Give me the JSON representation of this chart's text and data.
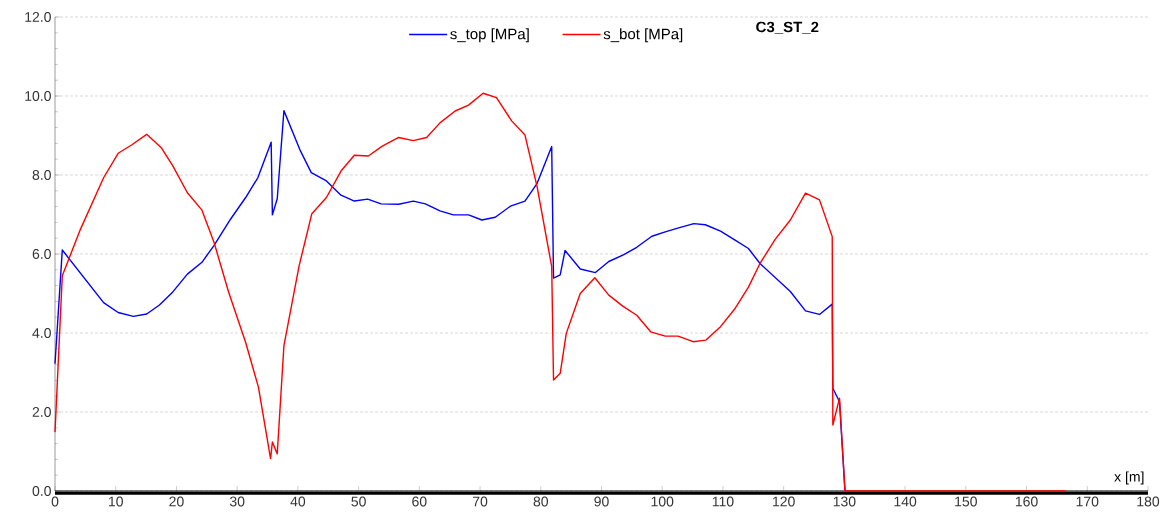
{
  "chart_data": {
    "type": "line",
    "title": "C3_ST_2",
    "xlabel": "x [m]",
    "series": [
      {
        "name": "s_top [MPa]",
        "color": "#0000ff",
        "x": [
          0,
          1.2,
          8.0,
          10.4,
          12.9,
          15.1,
          17.2,
          19.4,
          21.8,
          24.2,
          26.2,
          28.9,
          31.4,
          33.4,
          35.6,
          35.8,
          36.6,
          37.7,
          40.3,
          42.2,
          44.7,
          47.1,
          49.3,
          51.5,
          53.7,
          56.6,
          59.0,
          61.0,
          63.4,
          65.6,
          68.1,
          70.3,
          72.5,
          75.0,
          77.4,
          79.4,
          81.8,
          82.1,
          83.2,
          84.0,
          86.5,
          89.0,
          91.2,
          93.6,
          95.8,
          98.3,
          100.5,
          102.7,
          105.2,
          107.1,
          109.6,
          112.0,
          114.2,
          116.1,
          121.1,
          123.6,
          125.9,
          128.0,
          128.1,
          129.2,
          130.1
        ],
        "values": [
          3.22,
          6.1,
          4.77,
          4.52,
          4.42,
          4.48,
          4.71,
          5.04,
          5.49,
          5.79,
          6.22,
          6.88,
          7.43,
          7.93,
          8.83,
          6.99,
          7.4,
          9.63,
          8.65,
          8.06,
          7.85,
          7.49,
          7.34,
          7.39,
          7.27,
          7.26,
          7.34,
          7.27,
          7.09,
          6.99,
          6.99,
          6.86,
          6.93,
          7.21,
          7.34,
          7.79,
          8.72,
          5.39,
          5.47,
          6.09,
          5.62,
          5.53,
          5.81,
          5.98,
          6.17,
          6.45,
          6.56,
          6.66,
          6.77,
          6.74,
          6.58,
          6.35,
          6.14,
          5.76,
          5.05,
          4.56,
          4.47,
          4.73,
          2.6,
          2.26,
          0
        ]
      },
      {
        "name": "s_bot [MPa]",
        "color": "#ff0000",
        "x": [
          0,
          1.2,
          4.2,
          8.0,
          10.4,
          12.6,
          15.1,
          17.5,
          19.4,
          21.8,
          24.2,
          26.2,
          28.6,
          31.4,
          33.5,
          35.5,
          35.8,
          36.6,
          37.7,
          40.2,
          42.3,
          44.7,
          47.1,
          49.3,
          51.6,
          53.9,
          56.6,
          59.0,
          61.2,
          63.4,
          65.9,
          68.1,
          70.5,
          72.7,
          75.2,
          77.4,
          79.4,
          81.8,
          82.1,
          83.2,
          84.2,
          86.5,
          88.9,
          91.2,
          93.5,
          95.8,
          98.1,
          100.5,
          102.6,
          105.1,
          107.2,
          109.6,
          111.9,
          114.2,
          116.1,
          118.6,
          121.1,
          123.6,
          125.9,
          128.0,
          128.1,
          129.2,
          130.1,
          166.4
        ],
        "values": [
          1.49,
          5.45,
          6.63,
          7.93,
          8.55,
          8.76,
          9.03,
          8.69,
          8.23,
          7.55,
          7.11,
          6.29,
          5.03,
          3.76,
          2.63,
          0.82,
          1.24,
          0.94,
          3.68,
          5.7,
          7.02,
          7.43,
          8.1,
          8.5,
          8.48,
          8.73,
          8.95,
          8.87,
          8.95,
          9.32,
          9.62,
          9.77,
          10.07,
          9.96,
          9.37,
          9.01,
          7.7,
          5.68,
          2.81,
          2.98,
          3.99,
          5.0,
          5.4,
          4.96,
          4.68,
          4.45,
          4.03,
          3.92,
          3.92,
          3.78,
          3.82,
          4.16,
          4.6,
          5.16,
          5.76,
          6.37,
          6.86,
          7.54,
          7.37,
          6.44,
          1.67,
          2.35,
          0,
          0
        ]
      }
    ],
    "xlim": [
      0,
      180
    ],
    "ylim": [
      0,
      12
    ],
    "xticks": [
      0,
      10,
      20,
      30,
      40,
      50,
      60,
      70,
      80,
      90,
      100,
      110,
      120,
      130,
      140,
      150,
      160,
      170,
      180
    ],
    "yticks": [
      {
        "value": 0,
        "label": "0.0"
      },
      {
        "value": 2,
        "label": "2.0"
      },
      {
        "value": 4,
        "label": "4.0"
      },
      {
        "value": 6,
        "label": "6.0"
      },
      {
        "value": 8,
        "label": "8.0"
      },
      {
        "value": 10,
        "label": "10.0"
      },
      {
        "value": 12,
        "label": "12.0"
      }
    ],
    "grid": "y",
    "legend": "top",
    "marker": "none",
    "line_style": "solid"
  }
}
